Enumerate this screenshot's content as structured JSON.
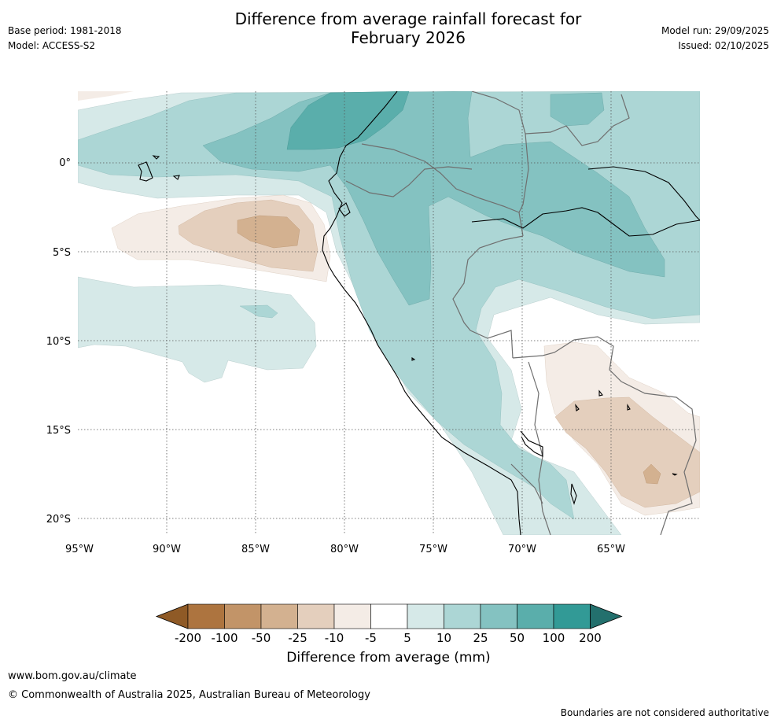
{
  "header": {
    "title_line1": "Difference from average rainfall forecast for",
    "title_line2": "February 2026",
    "base_period": "Base period: 1981-2018",
    "model": "Model: ACCESS-S2",
    "model_run": "Model run: 29/09/2025",
    "issued": "Issued: 02/10/2025"
  },
  "map": {
    "lon_labels": [
      "95°W",
      "90°W",
      "85°W",
      "80°W",
      "75°W",
      "70°W",
      "65°W"
    ],
    "lat_labels": [
      "0°",
      "5°S",
      "10°S",
      "15°S",
      "20°S"
    ]
  },
  "colorbar": {
    "title": "Difference from average (mm)",
    "ticks": [
      "-200",
      "-100",
      "-50",
      "-25",
      "-10",
      "-5",
      "5",
      "10",
      "25",
      "50",
      "100",
      "200"
    ],
    "colors": [
      "#8f5a26",
      "#ad743f",
      "#c29468",
      "#d3b190",
      "#e4cfbd",
      "#f4ece6",
      "#ffffff",
      "#d6e9e8",
      "#acd6d5",
      "#84c2c1",
      "#5aaeab",
      "#329a96",
      "#23706d"
    ]
  },
  "footer": {
    "website": "www.bom.gov.au/climate",
    "copyright": "© Commonwealth of Australia 2025, Australian Bureau of Meteorology",
    "disclaimer": "Boundaries are not considered authoritative"
  }
}
